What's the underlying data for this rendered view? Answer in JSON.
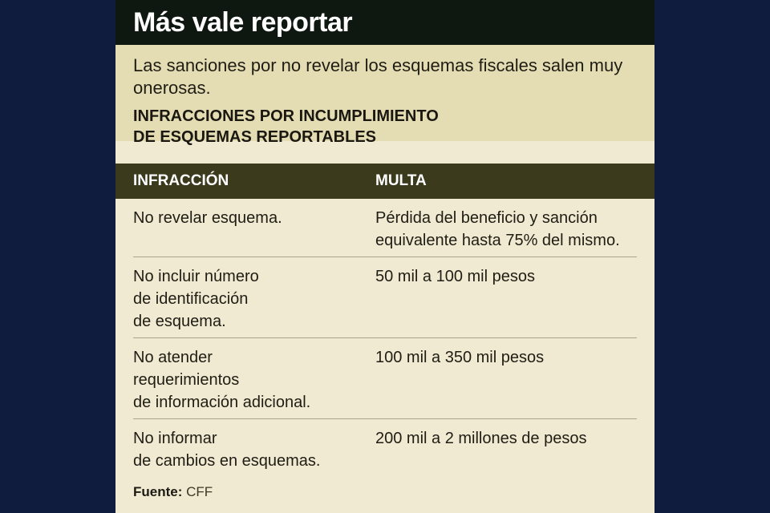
{
  "title": "Más vale reportar",
  "subtitle": "Las sanciones por no revelar los esquemas fiscales salen muy onerosas.",
  "table_title": "INFRACCIONES POR INCUMPLIMIENTO\nDE ESQUEMAS REPORTABLES",
  "columns": {
    "infraction": "INFRACCIÓN",
    "fine": "MULTA"
  },
  "rows": [
    {
      "infraction": "No revelar esquema.",
      "fine": "Pérdida del beneficio y sanción\nequivalente hasta 75% del mismo."
    },
    {
      "infraction": "No incluir número\nde identificación\nde esquema.",
      "fine": "50 mil a 100 mil pesos"
    },
    {
      "infraction": "No atender\nrequerimientos\nde información adicional.",
      "fine": "100 mil a 350 mil pesos"
    },
    {
      "infraction": "No informar\nde cambios en esquemas.",
      "fine": "200 mil a 2 millones de pesos"
    }
  ],
  "source": {
    "label": "Fuente:",
    "value": "CFF"
  }
}
